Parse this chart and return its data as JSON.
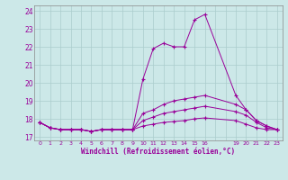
{
  "xlabel": "Windchill (Refroidissement éolien,°C)",
  "background_color": "#cce8e8",
  "line_color": "#990099",
  "grid_color": "#aacccc",
  "x_all": [
    0,
    1,
    2,
    3,
    4,
    5,
    6,
    7,
    8,
    9,
    10,
    11,
    12,
    13,
    14,
    15,
    16,
    17,
    18,
    19,
    20,
    21,
    22,
    23
  ],
  "x_tick_labels": [
    "0",
    "1",
    "2",
    "3",
    "4",
    "5",
    "6",
    "7",
    "8",
    "9",
    "10",
    "11",
    "12",
    "13",
    "14",
    "15",
    "16",
    "",
    "",
    "19",
    "20",
    "21",
    "22",
    "23"
  ],
  "xlim": [
    -0.5,
    23.5
  ],
  "ylim": [
    16.8,
    24.3
  ],
  "y_ticks": [
    17,
    18,
    19,
    20,
    21,
    22,
    23,
    24
  ],
  "series": [
    {
      "x": [
        0,
        1,
        2,
        3,
        4,
        5,
        6,
        7,
        8,
        9,
        10,
        11,
        12,
        13,
        14,
        15,
        16,
        19,
        20,
        21,
        22,
        23
      ],
      "y": [
        17.8,
        17.5,
        17.4,
        17.4,
        17.4,
        17.3,
        17.4,
        17.4,
        17.4,
        17.4,
        20.2,
        21.9,
        22.2,
        22.0,
        22.0,
        23.5,
        23.8,
        19.3,
        18.5,
        17.9,
        17.6,
        17.4
      ]
    },
    {
      "x": [
        0,
        1,
        2,
        3,
        4,
        5,
        6,
        7,
        8,
        9,
        10,
        11,
        12,
        13,
        14,
        15,
        16,
        19,
        20,
        21,
        22,
        23
      ],
      "y": [
        17.8,
        17.5,
        17.4,
        17.4,
        17.4,
        17.3,
        17.4,
        17.4,
        17.4,
        17.4,
        18.3,
        18.5,
        18.8,
        19.0,
        19.1,
        19.2,
        19.3,
        18.8,
        18.5,
        17.9,
        17.6,
        17.4
      ]
    },
    {
      "x": [
        0,
        1,
        2,
        3,
        4,
        5,
        6,
        7,
        8,
        9,
        10,
        11,
        12,
        13,
        14,
        15,
        16,
        19,
        20,
        21,
        22,
        23
      ],
      "y": [
        17.8,
        17.5,
        17.4,
        17.4,
        17.4,
        17.3,
        17.4,
        17.4,
        17.4,
        17.4,
        17.9,
        18.1,
        18.3,
        18.4,
        18.5,
        18.6,
        18.7,
        18.4,
        18.2,
        17.8,
        17.5,
        17.4
      ]
    },
    {
      "x": [
        0,
        1,
        2,
        3,
        4,
        5,
        6,
        7,
        8,
        9,
        10,
        11,
        12,
        13,
        14,
        15,
        16,
        19,
        20,
        21,
        22,
        23
      ],
      "y": [
        17.8,
        17.5,
        17.4,
        17.4,
        17.4,
        17.3,
        17.4,
        17.4,
        17.4,
        17.4,
        17.6,
        17.7,
        17.8,
        17.85,
        17.9,
        18.0,
        18.05,
        17.9,
        17.7,
        17.5,
        17.4,
        17.4
      ]
    }
  ]
}
